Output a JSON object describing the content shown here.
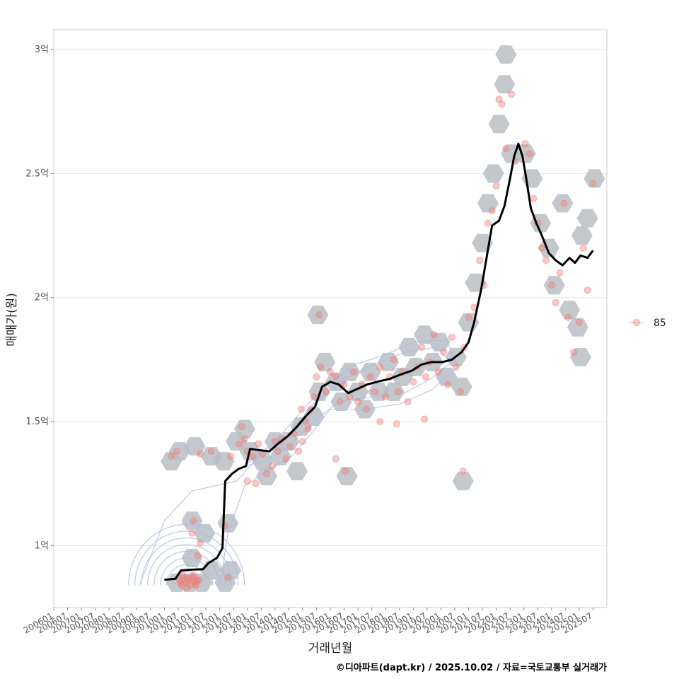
{
  "chart_data": {
    "type": "scatter",
    "xlabel": "거래년월",
    "ylabel": "매매가(원)",
    "caption": "©디아파트(dapt.kr) / 2025.10.02 / 자료=국토교통부 실거래가",
    "x_range": [
      "2006-01",
      "2026-01"
    ],
    "ylim": [
      0.75,
      3.08
    ],
    "y_unit": "억",
    "y_ticks": [
      {
        "value": 1.0,
        "label": "1억"
      },
      {
        "value": 1.5,
        "label": "1.5억"
      },
      {
        "value": 2.0,
        "label": "2억"
      },
      {
        "value": 2.5,
        "label": "2.5억"
      },
      {
        "value": 3.0,
        "label": "3억"
      }
    ],
    "x_ticks": [
      "200601",
      "200607",
      "200701",
      "200707",
      "200801",
      "200807",
      "200901",
      "200907",
      "201001",
      "201007",
      "201101",
      "201107",
      "201201",
      "201207",
      "201301",
      "201307",
      "201401",
      "201407",
      "201501",
      "201507",
      "201601",
      "201607",
      "201701",
      "201707",
      "201801",
      "201807",
      "201901",
      "201907",
      "202001",
      "202007",
      "202101",
      "202107",
      "202201",
      "202207",
      "202301",
      "202307",
      "202401",
      "202407",
      "202501",
      "202507"
    ],
    "legend": [
      {
        "label": "85",
        "color": "#f8766d"
      }
    ],
    "point_color": "#f8766d",
    "hex_color": "#b9bec3",
    "line_color": "#000000",
    "contour_color": "#a8baf0",
    "trend_line": [
      [
        2010.0,
        0.862
      ],
      [
        2010.4,
        0.866
      ],
      [
        2010.6,
        0.9
      ],
      [
        2011.0,
        0.903
      ],
      [
        2011.4,
        0.905
      ],
      [
        2011.6,
        0.93
      ],
      [
        2011.9,
        0.95
      ],
      [
        2012.1,
        0.99
      ],
      [
        2012.2,
        1.26
      ],
      [
        2012.45,
        1.29
      ],
      [
        2012.7,
        1.31
      ],
      [
        2012.95,
        1.32
      ],
      [
        2013.1,
        1.39
      ],
      [
        2013.4,
        1.385
      ],
      [
        2013.8,
        1.38
      ],
      [
        2014.1,
        1.41
      ],
      [
        2014.45,
        1.44
      ],
      [
        2014.8,
        1.48
      ],
      [
        2015.1,
        1.52
      ],
      [
        2015.45,
        1.56
      ],
      [
        2015.7,
        1.64
      ],
      [
        2016.0,
        1.66
      ],
      [
        2016.3,
        1.65
      ],
      [
        2016.65,
        1.615
      ],
      [
        2016.95,
        1.63
      ],
      [
        2017.35,
        1.65
      ],
      [
        2017.75,
        1.662
      ],
      [
        2018.15,
        1.672
      ],
      [
        2018.55,
        1.69
      ],
      [
        2018.95,
        1.705
      ],
      [
        2019.3,
        1.73
      ],
      [
        2019.65,
        1.74
      ],
      [
        2020.05,
        1.74
      ],
      [
        2020.4,
        1.75
      ],
      [
        2020.75,
        1.78
      ],
      [
        2021.0,
        1.82
      ],
      [
        2021.2,
        1.9
      ],
      [
        2021.45,
        2.03
      ],
      [
        2021.65,
        2.16
      ],
      [
        2021.85,
        2.29
      ],
      [
        2022.1,
        2.31
      ],
      [
        2022.3,
        2.37
      ],
      [
        2022.5,
        2.48
      ],
      [
        2022.65,
        2.57
      ],
      [
        2022.8,
        2.62
      ],
      [
        2022.95,
        2.57
      ],
      [
        2023.1,
        2.47
      ],
      [
        2023.25,
        2.36
      ],
      [
        2023.45,
        2.3
      ],
      [
        2023.65,
        2.25
      ],
      [
        2023.9,
        2.18
      ],
      [
        2024.15,
        2.15
      ],
      [
        2024.4,
        2.13
      ],
      [
        2024.65,
        2.16
      ],
      [
        2024.85,
        2.14
      ],
      [
        2025.05,
        2.17
      ],
      [
        2025.3,
        2.16
      ],
      [
        2025.5,
        2.19
      ]
    ],
    "points": [
      [
        2010.55,
        0.86
      ],
      [
        2010.62,
        0.84
      ],
      [
        2010.7,
        0.87
      ],
      [
        2010.78,
        0.85
      ],
      [
        2010.86,
        0.86
      ],
      [
        2010.94,
        0.84
      ],
      [
        2011.02,
        0.87
      ],
      [
        2011.1,
        0.85
      ],
      [
        2011.18,
        0.86
      ],
      [
        2010.66,
        0.88
      ],
      [
        2010.82,
        0.83
      ],
      [
        2011.06,
        0.88
      ],
      [
        2011.14,
        0.84
      ],
      [
        2010.58,
        0.85
      ],
      [
        2010.9,
        0.87
      ],
      [
        2011.26,
        0.86
      ],
      [
        2011.05,
        1.1
      ],
      [
        2011.0,
        1.05
      ],
      [
        2011.2,
        0.96
      ],
      [
        2011.3,
        1.01
      ],
      [
        2012.2,
        1.08
      ],
      [
        2012.3,
        0.87
      ],
      [
        2010.25,
        1.36
      ],
      [
        2010.45,
        1.38
      ],
      [
        2011.3,
        1.37
      ],
      [
        2011.7,
        1.38
      ],
      [
        2012.4,
        1.36
      ],
      [
        2012.7,
        1.41
      ],
      [
        2012.9,
        1.43
      ],
      [
        2013.0,
        1.38
      ],
      [
        2013.2,
        1.36
      ],
      [
        2013.4,
        1.41
      ],
      [
        2013.55,
        1.37
      ],
      [
        2013.7,
        1.29
      ],
      [
        2013.9,
        1.32
      ],
      [
        2014.0,
        1.42
      ],
      [
        2014.1,
        1.38
      ],
      [
        2014.25,
        1.43
      ],
      [
        2014.4,
        1.35
      ],
      [
        2014.55,
        1.4
      ],
      [
        2014.7,
        1.45
      ],
      [
        2014.85,
        1.38
      ],
      [
        2015.0,
        1.42
      ],
      [
        2015.1,
        1.5
      ],
      [
        2015.3,
        1.55
      ],
      [
        2015.4,
        1.6
      ],
      [
        2015.5,
        1.68
      ],
      [
        2015.65,
        1.72
      ],
      [
        2015.85,
        1.62
      ],
      [
        2016.0,
        1.7
      ],
      [
        2016.2,
        1.68
      ],
      [
        2016.35,
        1.58
      ],
      [
        2016.5,
        1.65
      ],
      [
        2016.7,
        1.6
      ],
      [
        2016.85,
        1.7
      ],
      [
        2017.0,
        1.58
      ],
      [
        2017.15,
        1.65
      ],
      [
        2017.3,
        1.55
      ],
      [
        2017.45,
        1.68
      ],
      [
        2017.6,
        1.62
      ],
      [
        2017.8,
        1.72
      ],
      [
        2018.0,
        1.6
      ],
      [
        2018.15,
        1.68
      ],
      [
        2018.3,
        1.75
      ],
      [
        2018.45,
        1.62
      ],
      [
        2018.6,
        1.7
      ],
      [
        2018.8,
        1.58
      ],
      [
        2019.0,
        1.66
      ],
      [
        2019.15,
        1.72
      ],
      [
        2019.3,
        1.8
      ],
      [
        2019.45,
        1.68
      ],
      [
        2019.6,
        1.74
      ],
      [
        2019.75,
        1.85
      ],
      [
        2019.9,
        1.7
      ],
      [
        2020.1,
        1.78
      ],
      [
        2020.25,
        1.65
      ],
      [
        2020.4,
        1.84
      ],
      [
        2020.55,
        1.72
      ],
      [
        2020.7,
        1.62
      ],
      [
        2020.85,
        1.8
      ],
      [
        2021.0,
        1.92
      ],
      [
        2021.2,
        1.96
      ],
      [
        2021.4,
        2.15
      ],
      [
        2021.55,
        2.05
      ],
      [
        2021.7,
        2.3
      ],
      [
        2021.85,
        2.35
      ],
      [
        2022.0,
        2.45
      ],
      [
        2022.1,
        2.8
      ],
      [
        2022.2,
        2.78
      ],
      [
        2022.35,
        2.6
      ],
      [
        2022.55,
        2.82
      ],
      [
        2022.7,
        2.55
      ],
      [
        2023.05,
        2.62
      ],
      [
        2023.2,
        2.58
      ],
      [
        2023.35,
        2.4
      ],
      [
        2023.5,
        2.3
      ],
      [
        2023.65,
        2.2
      ],
      [
        2023.8,
        2.15
      ],
      [
        2024.0,
        2.05
      ],
      [
        2024.15,
        1.98
      ],
      [
        2024.3,
        2.1
      ],
      [
        2024.45,
        2.38
      ],
      [
        2024.6,
        1.92
      ],
      [
        2024.8,
        1.78
      ],
      [
        2025.0,
        1.9
      ],
      [
        2025.15,
        2.2
      ],
      [
        2025.3,
        2.03
      ],
      [
        2025.5,
        2.46
      ],
      [
        2015.6,
        1.93
      ],
      [
        2016.2,
        1.35
      ],
      [
        2016.55,
        1.3
      ],
      [
        2020.8,
        1.3
      ],
      [
        2013.0,
        1.26
      ],
      [
        2013.3,
        1.25
      ],
      [
        2012.8,
        1.48
      ],
      [
        2014.95,
        1.55
      ],
      [
        2015.2,
        1.47
      ],
      [
        2017.8,
        1.5
      ],
      [
        2018.4,
        1.49
      ],
      [
        2019.4,
        1.51
      ]
    ],
    "hexbins": [
      [
        2010.9,
        0.85
      ],
      [
        2011.35,
        0.85
      ],
      [
        2010.45,
        0.85
      ],
      [
        2011.7,
        0.9
      ],
      [
        2012.2,
        0.85
      ],
      [
        2011.0,
        1.1
      ],
      [
        2011.45,
        1.05
      ],
      [
        2012.3,
        1.09
      ],
      [
        2011.0,
        0.95
      ],
      [
        2012.4,
        0.9
      ],
      [
        2010.25,
        1.34
      ],
      [
        2010.55,
        1.38
      ],
      [
        2011.1,
        1.4
      ],
      [
        2011.7,
        1.36
      ],
      [
        2012.15,
        1.34
      ],
      [
        2012.6,
        1.42
      ],
      [
        2012.9,
        1.47
      ],
      [
        2013.1,
        1.38
      ],
      [
        2013.55,
        1.34
      ],
      [
        2013.7,
        1.28
      ],
      [
        2014.0,
        1.42
      ],
      [
        2014.2,
        1.36
      ],
      [
        2014.5,
        1.42
      ],
      [
        2014.8,
        1.3
      ],
      [
        2014.95,
        1.48
      ],
      [
        2015.4,
        1.52
      ],
      [
        2015.6,
        1.62
      ],
      [
        2015.55,
        1.93
      ],
      [
        2015.8,
        1.74
      ],
      [
        2016.2,
        1.66
      ],
      [
        2016.4,
        1.58
      ],
      [
        2016.6,
        1.28
      ],
      [
        2016.7,
        1.7
      ],
      [
        2017.0,
        1.62
      ],
      [
        2017.25,
        1.55
      ],
      [
        2017.45,
        1.7
      ],
      [
        2017.75,
        1.62
      ],
      [
        2018.1,
        1.74
      ],
      [
        2018.3,
        1.62
      ],
      [
        2018.6,
        1.68
      ],
      [
        2018.85,
        1.8
      ],
      [
        2019.1,
        1.72
      ],
      [
        2019.4,
        1.85
      ],
      [
        2019.7,
        1.74
      ],
      [
        2019.95,
        1.82
      ],
      [
        2020.2,
        1.68
      ],
      [
        2020.55,
        1.76
      ],
      [
        2020.75,
        1.64
      ],
      [
        2020.8,
        1.26
      ],
      [
        2021.0,
        1.9
      ],
      [
        2021.25,
        2.06
      ],
      [
        2021.5,
        2.22
      ],
      [
        2021.7,
        2.38
      ],
      [
        2021.9,
        2.5
      ],
      [
        2022.1,
        2.7
      ],
      [
        2022.3,
        2.86
      ],
      [
        2022.35,
        2.98
      ],
      [
        2022.55,
        2.58
      ],
      [
        2023.05,
        2.58
      ],
      [
        2023.3,
        2.48
      ],
      [
        2023.6,
        2.3
      ],
      [
        2023.9,
        2.2
      ],
      [
        2024.1,
        2.05
      ],
      [
        2024.4,
        2.38
      ],
      [
        2024.65,
        1.95
      ],
      [
        2024.95,
        1.88
      ],
      [
        2025.1,
        2.25
      ],
      [
        2025.3,
        2.32
      ],
      [
        2025.55,
        2.48
      ],
      [
        2025.05,
        1.76
      ]
    ],
    "contour_center": [
      2010.8,
      0.84
    ],
    "contour_rings": 8
  }
}
